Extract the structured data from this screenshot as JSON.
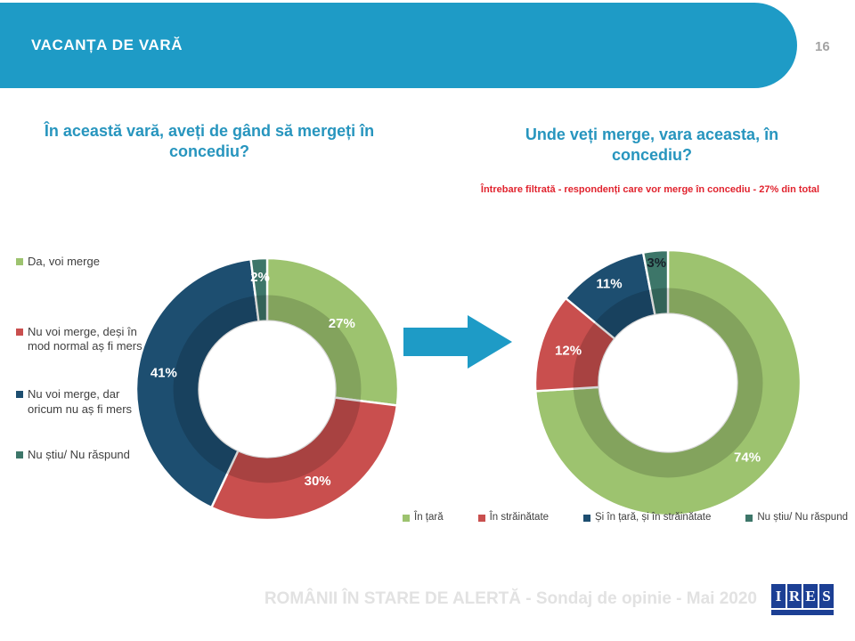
{
  "header": {
    "title": "VACANȚA DE VARĂ",
    "page_number": "16",
    "bar_color": "#1e9bc6"
  },
  "left_panel": {
    "title": "În această vară, aveți de gând să mergeți în concediu?"
  },
  "right_panel": {
    "title": "Unde veți merge, vara aceasta, în concediu?",
    "filter_note": "Întrebare filtrată - respondenți care vor merge în concediu - 27% din total"
  },
  "arrow": {
    "color": "#1e9bc6"
  },
  "footer": {
    "text": "ROMÂNII ÎN STARE DE ALERTĂ - Sondaj de opinie - Mai 2020",
    "logo_letters": [
      "I",
      "R",
      "E",
      "S"
    ],
    "logo_color": "#1c3f94"
  },
  "chart_data": [
    {
      "type": "pie",
      "subtype": "donut",
      "title": "În această vară, aveți de gând să mergeți în concediu?",
      "categories": [
        "Da, voi merge",
        "Nu voi merge, deși în mod normal aș fi mers",
        "Nu voi merge, dar oricum nu aș fi mers",
        "Nu știu/ Nu răspund"
      ],
      "values": [
        27,
        30,
        41,
        2
      ],
      "data_labels": [
        "27%",
        "30%",
        "41%",
        "2%"
      ],
      "colors": [
        "#9dc36f",
        "#c94f4e",
        "#1d4e70",
        "#3d7669"
      ],
      "label_colors": [
        "#ffffff",
        "#ffffff",
        "#ffffff",
        "#ffffff"
      ],
      "label_radius": [
        0.76,
        0.8,
        0.8,
        0.86
      ],
      "start_angle_deg": 0,
      "direction": "clockwise",
      "legend_position": "left",
      "grid": false
    },
    {
      "type": "pie",
      "subtype": "donut",
      "title": "Unde veți merge, vara aceasta, în concediu?",
      "categories": [
        "În țară",
        "În străinătate",
        "Și în țară, și în străinătate",
        "Nu știu/ Nu răspund"
      ],
      "values": [
        74,
        12,
        11,
        3
      ],
      "data_labels": [
        "74%",
        "12%",
        "11%",
        "3%"
      ],
      "colors": [
        "#9dc36f",
        "#c94f4e",
        "#1d4e70",
        "#3d7669"
      ],
      "label_colors": [
        "#ffffff",
        "#ffffff",
        "#ffffff",
        "#17212b"
      ],
      "label_radius": [
        0.82,
        0.79,
        0.87,
        0.91
      ],
      "start_angle_deg": 0,
      "direction": "clockwise",
      "legend_position": "bottom",
      "grid": false
    }
  ]
}
